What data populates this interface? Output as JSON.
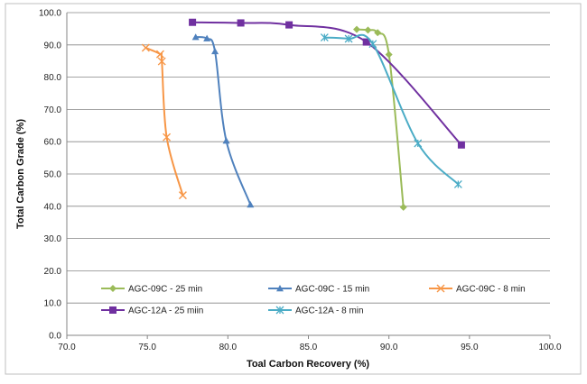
{
  "chart_data": {
    "type": "scatter",
    "title": "",
    "xlabel": "Toal Carbon Recovery (%)",
    "ylabel": "Total Carbon Grade (%)",
    "xlim": [
      70.0,
      100.0
    ],
    "ylim": [
      0.0,
      100.0
    ],
    "x_ticks": [
      "70.0",
      "75.0",
      "80.0",
      "85.0",
      "90.0",
      "95.0",
      "100.0"
    ],
    "y_ticks": [
      "0.0",
      "10.0",
      "20.0",
      "30.0",
      "40.0",
      "50.0",
      "60.0",
      "70.0",
      "80.0",
      "90.0",
      "100.0"
    ],
    "grid": "horizontal",
    "legend_position": "bottom-inside",
    "series": [
      {
        "name": "AGC-09C - 25 min",
        "color": "#9bbb59",
        "marker": "diamond",
        "x": [
          88.0,
          88.7,
          89.3,
          90.0,
          90.9
        ],
        "y": [
          94.8,
          94.6,
          93.8,
          87.0,
          39.7
        ]
      },
      {
        "name": "AGC-09C - 15 min",
        "color": "#4f81bd",
        "marker": "triangle",
        "x": [
          78.0,
          78.7,
          79.2,
          79.9,
          81.4
        ],
        "y": [
          92.4,
          92.0,
          88.0,
          60.3,
          40.5
        ]
      },
      {
        "name": "AGC-09C - 8 min",
        "color": "#f79646",
        "marker": "x",
        "x": [
          74.9,
          75.8,
          75.9,
          76.2,
          77.2
        ],
        "y": [
          89.1,
          87.1,
          84.9,
          61.4,
          43.4
        ]
      },
      {
        "name": "AGC-12A - 25 miin",
        "color": "#7030a0",
        "marker": "square",
        "x": [
          77.8,
          80.8,
          83.8,
          88.6,
          94.5
        ],
        "y": [
          97.0,
          96.8,
          96.2,
          90.9,
          59.0
        ]
      },
      {
        "name": "AGC-12A - 8 min",
        "color": "#4bacc6",
        "marker": "star",
        "x": [
          86.0,
          87.5,
          89.0,
          91.8,
          94.3
        ],
        "y": [
          92.3,
          91.9,
          90.3,
          59.5,
          46.8
        ]
      }
    ]
  }
}
